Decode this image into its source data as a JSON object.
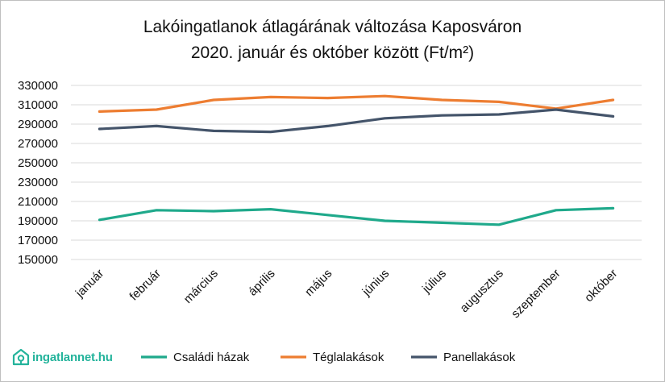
{
  "chart_data": {
    "type": "line",
    "title_line1": "Lakóingatlanok átlagárának változása Kaposváron",
    "title_line2": "2020. január és október között (Ft/m²)",
    "categories": [
      "január",
      "február",
      "március",
      "április",
      "május",
      "június",
      "július",
      "augusztus",
      "szeptember",
      "október"
    ],
    "ylim": [
      150000,
      330000
    ],
    "yticks": [
      150000,
      170000,
      190000,
      210000,
      230000,
      250000,
      270000,
      290000,
      310000,
      330000
    ],
    "grid": true,
    "legend_position": "bottom",
    "series": [
      {
        "name": "Családi házak",
        "color": "#1fa98b",
        "values": [
          191000,
          201000,
          200000,
          202000,
          196000,
          190000,
          188000,
          186000,
          201000,
          203000
        ]
      },
      {
        "name": "Téglalakások",
        "color": "#ed7d31",
        "values": [
          303000,
          305000,
          315000,
          318000,
          317000,
          319000,
          315000,
          313000,
          306000,
          315000
        ]
      },
      {
        "name": "Panellakások",
        "color": "#44546a",
        "values": [
          285000,
          288000,
          283000,
          282000,
          288000,
          296000,
          299000,
          300000,
          305000,
          298000
        ]
      }
    ]
  },
  "brand": {
    "name": "ingatlannet.hu",
    "color": "#23b39b"
  }
}
